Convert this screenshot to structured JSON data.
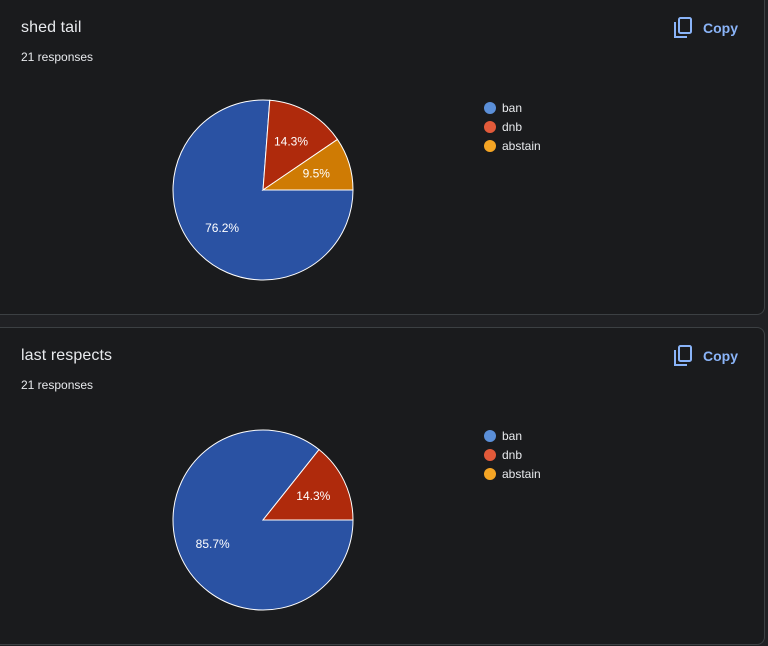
{
  "copy_label": "Copy",
  "chart_data": [
    {
      "type": "pie",
      "title": "shed tail",
      "subtitle": "21 responses",
      "categories": [
        "ban",
        "dnb",
        "abstain"
      ],
      "values": [
        76.2,
        14.3,
        9.5
      ],
      "labels": [
        "76.2%",
        "14.3%",
        "9.5%"
      ],
      "colors": [
        "#2a52a3",
        "#af2a0c",
        "#cf7b04"
      ],
      "legend_colors": [
        "#5b8fd8",
        "#e25a3a",
        "#f5a524"
      ],
      "legend": "right"
    },
    {
      "type": "pie",
      "title": "last respects",
      "subtitle": "21 responses",
      "categories": [
        "ban",
        "dnb",
        "abstain"
      ],
      "values": [
        85.7,
        14.3,
        0
      ],
      "labels": [
        "85.7%",
        "14.3%",
        ""
      ],
      "colors": [
        "#2a52a3",
        "#af2a0c",
        "#cf7b04"
      ],
      "legend_colors": [
        "#5b8fd8",
        "#e25a3a",
        "#f5a524"
      ],
      "legend": "right"
    }
  ]
}
